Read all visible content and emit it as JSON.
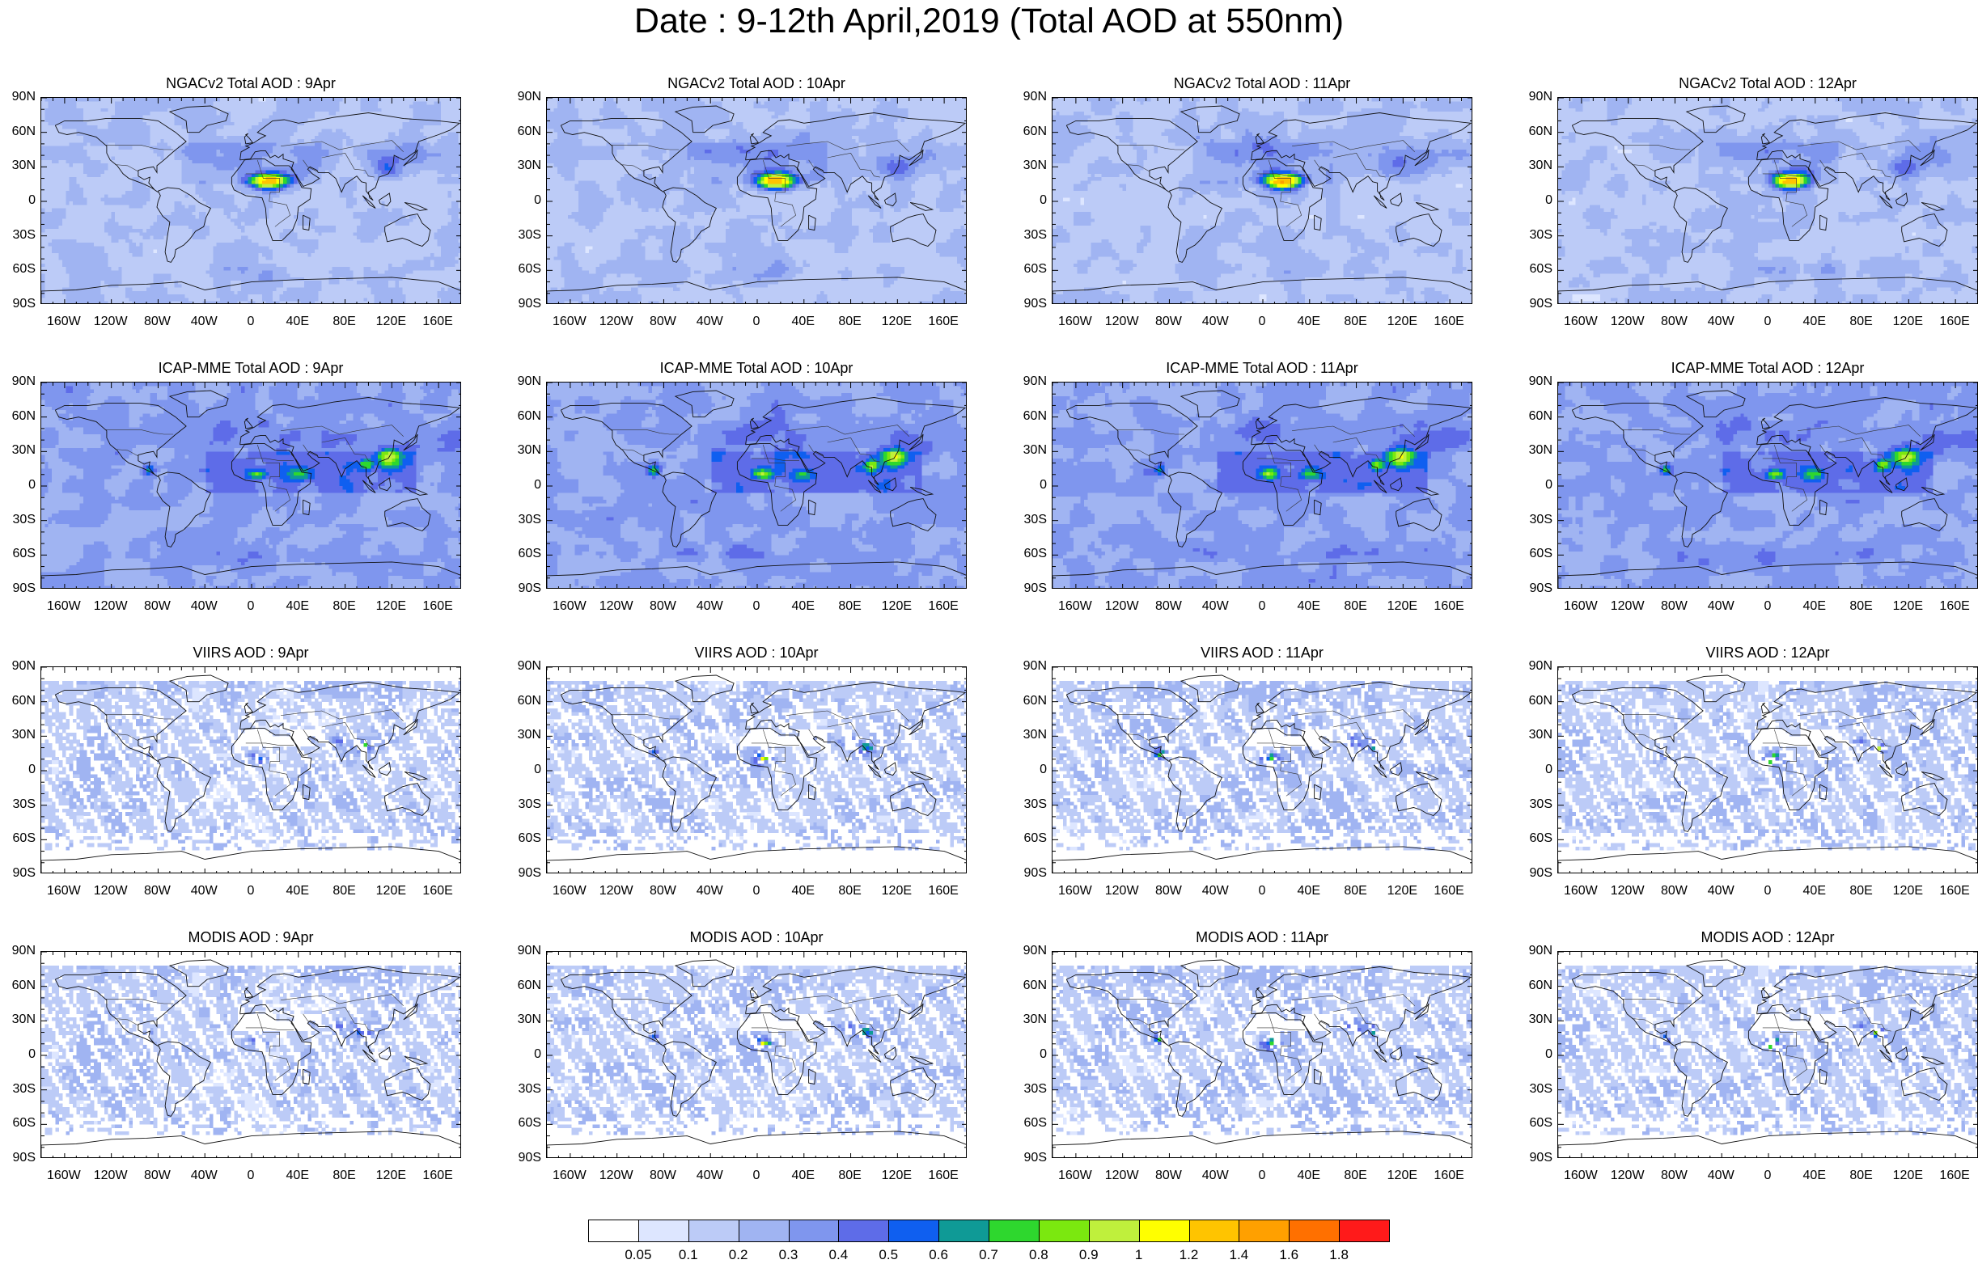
{
  "title": "Date : 9-12th April,2019 (Total AOD at 550nm)",
  "lat_labels": [
    "90N",
    "60N",
    "30N",
    "0",
    "30S",
    "60S",
    "90S"
  ],
  "lon_labels": [
    "160W",
    "120W",
    "80W",
    "40W",
    "0",
    "40E",
    "80E",
    "120E",
    "160E"
  ],
  "rows": [
    {
      "product": "NGACv2 Total AOD",
      "style": "model-dust",
      "panels": [
        {
          "title": "NGACv2 Total AOD : 9Apr"
        },
        {
          "title": "NGACv2 Total AOD : 10Apr"
        },
        {
          "title": "NGACv2 Total AOD : 11Apr"
        },
        {
          "title": "NGACv2 Total AOD : 12Apr"
        }
      ]
    },
    {
      "product": "ICAP-MME Total AOD",
      "style": "model-smoke",
      "panels": [
        {
          "title": "ICAP-MME Total AOD : 9Apr"
        },
        {
          "title": "ICAP-MME Total AOD : 10Apr"
        },
        {
          "title": "ICAP-MME Total AOD : 11Apr"
        },
        {
          "title": "ICAP-MME Total AOD : 12Apr"
        }
      ]
    },
    {
      "product": "VIIRS AOD",
      "style": "satellite",
      "panels": [
        {
          "title": "VIIRS AOD : 9Apr"
        },
        {
          "title": "VIIRS AOD : 10Apr"
        },
        {
          "title": "VIIRS AOD : 11Apr"
        },
        {
          "title": "VIIRS AOD : 12Apr"
        }
      ]
    },
    {
      "product": "MODIS AOD",
      "style": "satellite",
      "panels": [
        {
          "title": "MODIS AOD : 9Apr"
        },
        {
          "title": "MODIS AOD : 10Apr"
        },
        {
          "title": "MODIS AOD : 11Apr"
        },
        {
          "title": "MODIS AOD : 12Apr"
        }
      ]
    }
  ],
  "colorbar": {
    "labels": [
      "0.05",
      "0.1",
      "0.2",
      "0.3",
      "0.4",
      "0.5",
      "0.6",
      "0.7",
      "0.8",
      "0.9",
      "1",
      "1.2",
      "1.4",
      "1.6",
      "1.8"
    ],
    "colors": [
      "#ffffff",
      "#dde6ff",
      "#bccbf7",
      "#a0b4f2",
      "#7f96ee",
      "#5e6ce8",
      "#0f5ff0",
      "#0f9a96",
      "#2ed72e",
      "#7be80f",
      "#bff03c",
      "#ffff00",
      "#ffc400",
      "#ffa000",
      "#ff7000",
      "#ff1a1a"
    ]
  }
}
